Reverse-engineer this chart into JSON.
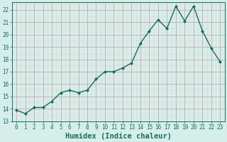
{
  "x": [
    0,
    1,
    2,
    3,
    4,
    5,
    6,
    7,
    8,
    9,
    10,
    11,
    12,
    13,
    14,
    15,
    16,
    17,
    18,
    19,
    20,
    21,
    22,
    23
  ],
  "y": [
    13.9,
    13.6,
    14.1,
    14.1,
    14.6,
    15.3,
    15.5,
    15.3,
    15.5,
    16.4,
    17.0,
    17.0,
    17.3,
    17.7,
    19.3,
    20.3,
    21.2,
    20.5,
    22.3,
    21.1,
    22.3,
    20.3,
    18.9,
    17.8
  ],
  "line_color": "#1a6b5a",
  "marker": "D",
  "marker_size": 2.0,
  "bg_color": "#d5eeea",
  "grid_major_color": "#c8a8a8",
  "grid_minor_color": "#e8d0d0",
  "xlabel": "Humidex (Indice chaleur)",
  "xlim": [
    -0.5,
    23.5
  ],
  "ylim": [
    13.0,
    22.6
  ],
  "yticks": [
    13,
    14,
    15,
    16,
    17,
    18,
    19,
    20,
    21,
    22
  ],
  "xticks": [
    0,
    1,
    2,
    3,
    4,
    5,
    6,
    7,
    8,
    9,
    10,
    11,
    12,
    13,
    14,
    15,
    16,
    17,
    18,
    19,
    20,
    21,
    22,
    23
  ],
  "tick_fontsize": 5.5,
  "xlabel_fontsize": 7.5,
  "tick_color": "#1a6b5a",
  "linewidth": 1.0
}
